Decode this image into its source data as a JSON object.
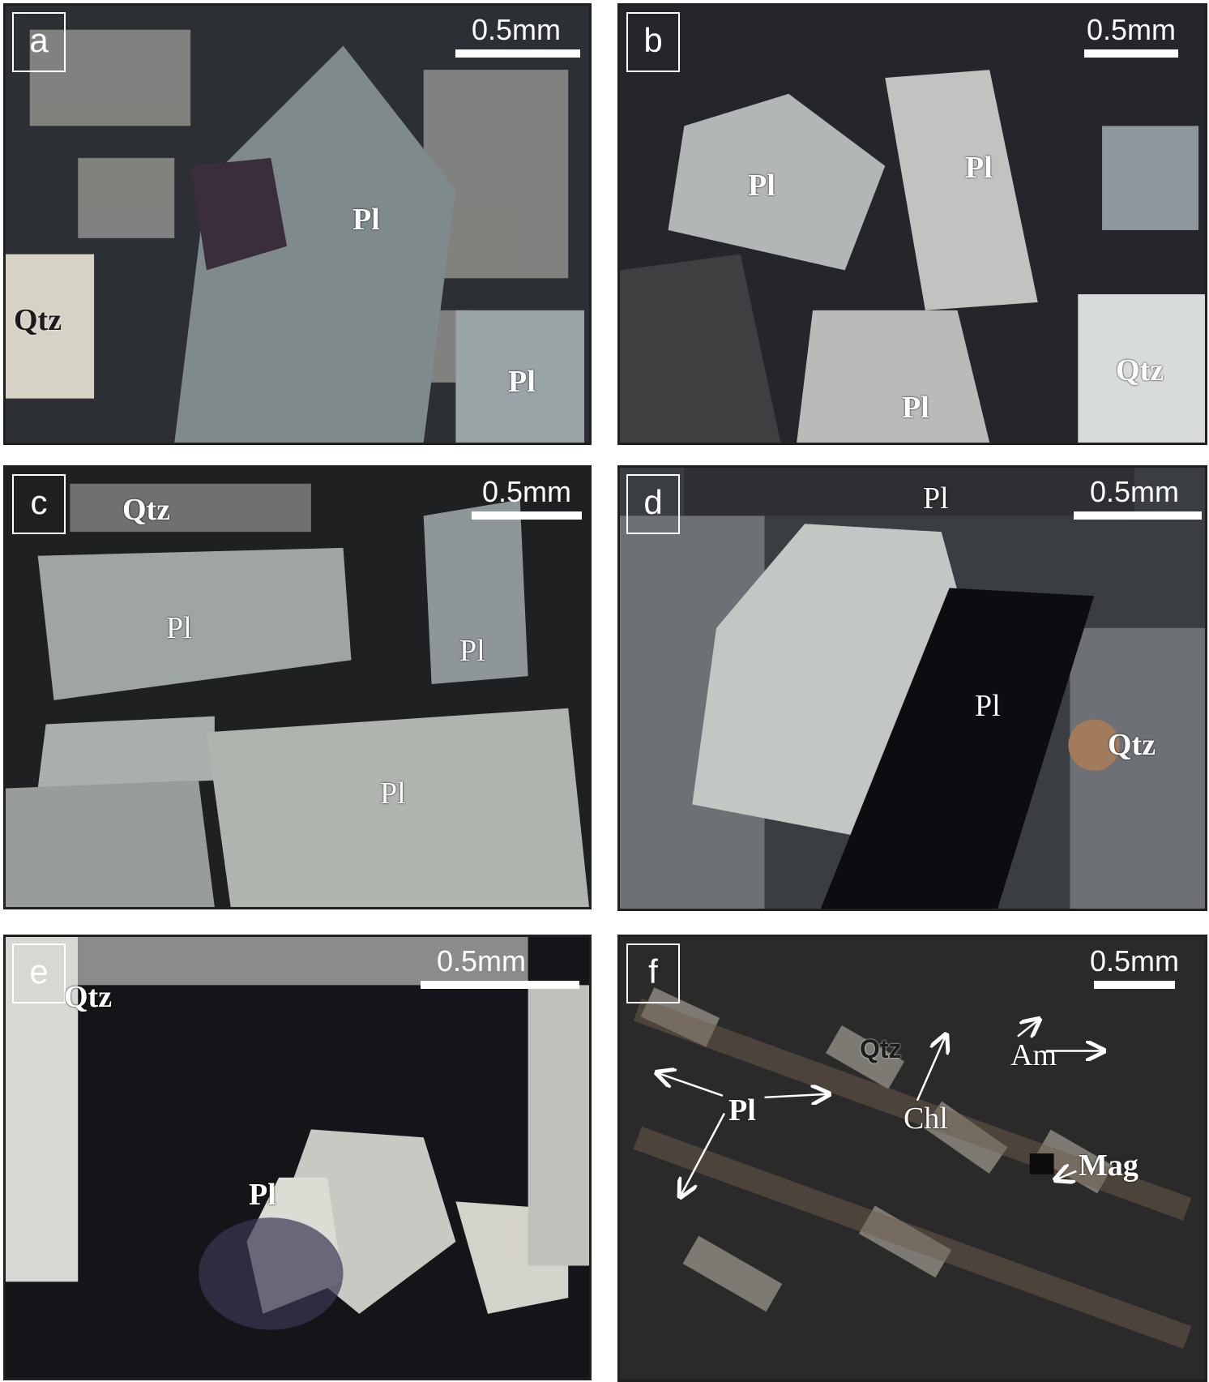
{
  "panels": [
    {
      "letter": "a",
      "scale": "0.5mm",
      "labels": [
        "Pl",
        "Qtz",
        "Pl"
      ]
    },
    {
      "letter": "b",
      "scale": "0.5mm",
      "labels": [
        "Pl",
        "Pl",
        "Pl",
        "Qtz"
      ]
    },
    {
      "letter": "c",
      "scale": "0.5mm",
      "labels": [
        "Qtz",
        "Pl",
        "Pl",
        "Pl"
      ]
    },
    {
      "letter": "d",
      "scale": "0.5mm",
      "labels": [
        "Pl",
        "Pl",
        "Qtz"
      ]
    },
    {
      "letter": "e",
      "scale": "0.5mm",
      "labels": [
        "Qtz",
        "Pl"
      ]
    },
    {
      "letter": "f",
      "scale": "0.5mm",
      "labels": [
        "Qtz",
        "Pl",
        "Chl",
        "Am",
        "Mag"
      ]
    }
  ],
  "colors": {
    "background": "#ffffff",
    "annotation": "#ffffff",
    "frame": "#202020"
  }
}
